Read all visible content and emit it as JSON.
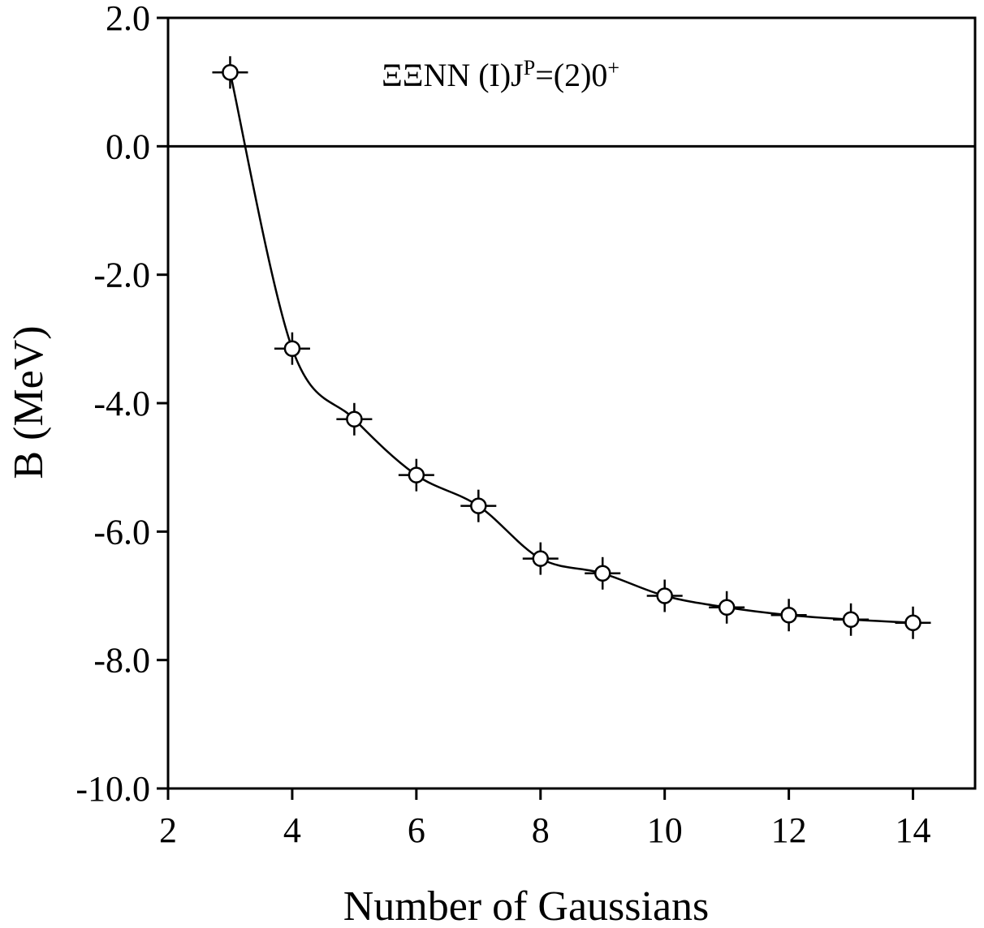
{
  "chart_data": {
    "type": "line",
    "xlabel": "Number of Gaussians",
    "ylabel": "B (MeV)",
    "xlim": [
      2,
      15
    ],
    "ylim": [
      -10,
      2
    ],
    "x_ticks": [
      2,
      4,
      6,
      8,
      10,
      12,
      14
    ],
    "x_tick_labels": [
      "2",
      "4",
      "6",
      "8",
      "10",
      "12",
      "14"
    ],
    "y_ticks": [
      2,
      0,
      -2,
      -4,
      -6,
      -8,
      -10
    ],
    "y_tick_labels": [
      "2.0",
      "0.0",
      "-2.0",
      "-4.0",
      "-6.0",
      "-8.0",
      "-10.0"
    ],
    "reference_line_y": 0,
    "annotation": {
      "main": "ΞΞNN  (I)J",
      "sup": "P",
      "tail": "=(2)0",
      "sup2": "+"
    },
    "series": [
      {
        "marker": "open-circle-with-cross",
        "color": "#000000",
        "x": [
          3,
          4,
          5,
          6,
          7,
          8,
          9,
          10,
          11,
          12,
          13,
          14
        ],
        "y": [
          1.15,
          -3.15,
          -4.25,
          -5.12,
          -5.6,
          -6.42,
          -6.65,
          -7.0,
          -7.18,
          -7.3,
          -7.37,
          -7.42
        ]
      }
    ],
    "grid": false
  }
}
